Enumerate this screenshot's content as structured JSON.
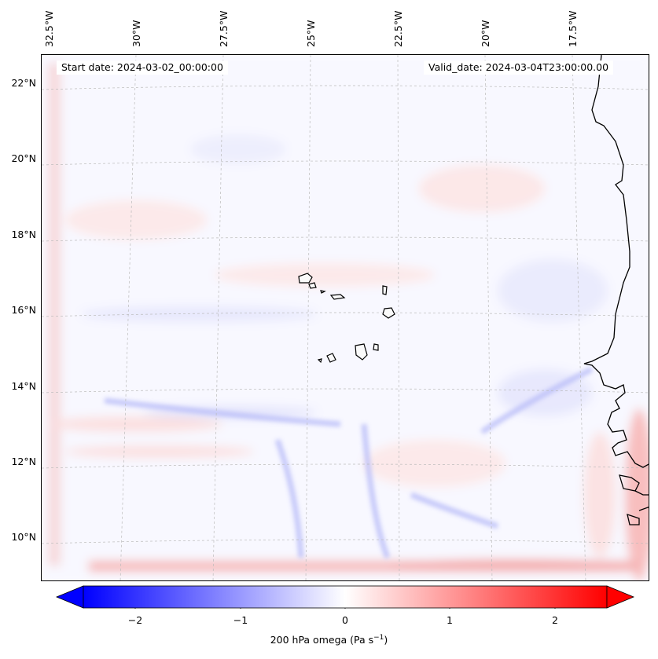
{
  "map": {
    "start_date": "Start date: 2024-03-02_00:00:00",
    "valid_date": "Valid_date: 2024-03-04T23:00:00.00",
    "longitude_labels": [
      "32.5°W",
      "30°W",
      "27.5°W",
      "25°W",
      "22.5°W",
      "20°W",
      "17.5°W"
    ],
    "latitude_labels": [
      "22°N",
      "20°N",
      "18°N",
      "16°N",
      "14°N",
      "12°N",
      "10°N"
    ],
    "gridlines": "dashed",
    "coastlines": true,
    "projection": "lambert-conformal"
  },
  "colorbar": {
    "colormap": "bwr",
    "min_color": "#0000ff",
    "mid_color": "#ffffff",
    "max_color": "#ff0000",
    "range": [
      -2.5,
      2.5
    ],
    "extend": "both",
    "tick_labels": [
      "−2",
      "−1",
      "0",
      "1",
      "2"
    ],
    "ticks": [
      -2,
      -1,
      0,
      1,
      2
    ],
    "label": "200 hPa omega (Pa s",
    "label_unit_power": "−1",
    "label_close": ")"
  },
  "field": {
    "variable": "200 hPa omega",
    "dominant_values": "near zero (-0.5 to 0.5)",
    "strong_positive_band": "southern boundary near 9°N",
    "positive_strip_east": "Senegal/Guinea coast"
  }
}
